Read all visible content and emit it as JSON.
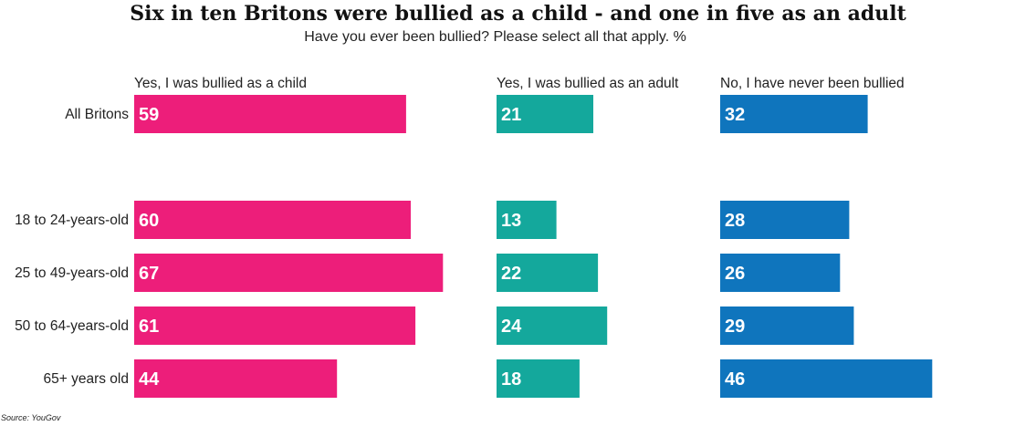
{
  "title": "Six in ten Britons were bullied as a child - and one in five as an adult",
  "subtitle": "Have you ever been bullied? Please select all that apply. %",
  "source": "Source: YouGov",
  "chart_data": {
    "type": "bar",
    "orientation": "horizontal",
    "layout": "small-multiples",
    "categories": [
      "All Britons",
      "18 to 24-years-old",
      "25 to 49-years-old",
      "50 to 64-years-old",
      "65+ years old"
    ],
    "series": [
      {
        "name": "Yes, I was bullied as a child",
        "color": "#ED1E7A",
        "values": [
          59,
          60,
          67,
          61,
          44
        ]
      },
      {
        "name": "Yes, I was bullied as an adult",
        "color": "#14A89C",
        "values": [
          21,
          13,
          22,
          24,
          18
        ]
      },
      {
        "name": "No, I have never been bullied",
        "color": "#0F75BD",
        "values": [
          32,
          28,
          26,
          29,
          46
        ]
      }
    ],
    "xlim": [
      0,
      100
    ],
    "grid": false,
    "data_labels": "inside-left"
  }
}
